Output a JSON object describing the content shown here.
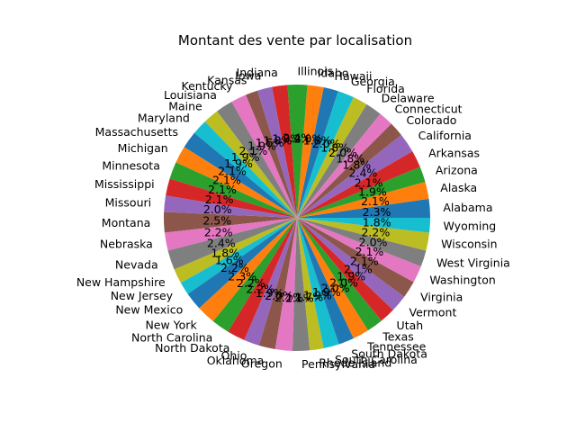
{
  "chart_data": {
    "type": "pie",
    "title": "Montant des vente par localisation",
    "start_angle_deg": 0,
    "direction": "counterclockwise",
    "colors": [
      "#1f77b4",
      "#ff7f0e",
      "#2ca02c",
      "#d62728",
      "#9467bd",
      "#8c564b",
      "#e377c2",
      "#7f7f7f",
      "#bcbd22",
      "#17becf"
    ],
    "slices": [
      {
        "label": "Alabama",
        "value": 2.3,
        "pct_label": "2.3%"
      },
      {
        "label": "Alaska",
        "value": 2.1,
        "pct_label": "2.1%"
      },
      {
        "label": "Arizona",
        "value": 1.9,
        "pct_label": "1.9%"
      },
      {
        "label": "Arkansas",
        "value": 2.1,
        "pct_label": "2.1%"
      },
      {
        "label": "California",
        "value": 2.4,
        "pct_label": "2.4%"
      },
      {
        "label": "Colorado",
        "value": 1.8,
        "pct_label": "1.8%"
      },
      {
        "label": "Connecticut",
        "value": 1.8,
        "pct_label": "1.8%"
      },
      {
        "label": "Delaware",
        "value": 2.0,
        "pct_label": "2.0%"
      },
      {
        "label": "Florida",
        "value": 1.8,
        "pct_label": "1.8%"
      },
      {
        "label": "Georgia",
        "value": 2.0,
        "pct_label": "2.0%"
      },
      {
        "label": "Hawaii",
        "value": 1.8,
        "pct_label": "1.8%"
      },
      {
        "label": "Idaho",
        "value": 2.0,
        "pct_label": "2.0%"
      },
      {
        "label": "Illinois",
        "value": 2.4,
        "pct_label": "2.4%"
      },
      {
        "label": "Indiana",
        "value": 1.9,
        "pct_label": "1.9%"
      },
      {
        "label": "Iowa",
        "value": 1.8,
        "pct_label": "1.8%"
      },
      {
        "label": "Kansas",
        "value": 1.5,
        "pct_label": "1.5%"
      },
      {
        "label": "Kentucky",
        "value": 1.9,
        "pct_label": "1.9%"
      },
      {
        "label": "Louisiana",
        "value": 2.1,
        "pct_label": "2.1%"
      },
      {
        "label": "Maine",
        "value": 1.9,
        "pct_label": "1.9%"
      },
      {
        "label": "Maryland",
        "value": 1.9,
        "pct_label": "1.9%"
      },
      {
        "label": "Massachusetts",
        "value": 2.1,
        "pct_label": "2.1%"
      },
      {
        "label": "Michigan",
        "value": 2.1,
        "pct_label": "2.1%"
      },
      {
        "label": "Minnesota",
        "value": 2.1,
        "pct_label": "2.1%"
      },
      {
        "label": "Mississippi",
        "value": 2.1,
        "pct_label": "2.1%"
      },
      {
        "label": "Missouri",
        "value": 2.0,
        "pct_label": "2.0%"
      },
      {
        "label": "Montana",
        "value": 2.5,
        "pct_label": "2.5%"
      },
      {
        "label": "Nebraska",
        "value": 2.2,
        "pct_label": "2.2%"
      },
      {
        "label": "Nevada",
        "value": 2.4,
        "pct_label": "2.4%"
      },
      {
        "label": "New Hampshire",
        "value": 1.8,
        "pct_label": "1.8%"
      },
      {
        "label": "New Jersey",
        "value": 1.6,
        "pct_label": "1.6%"
      },
      {
        "label": "New Mexico",
        "value": 2.2,
        "pct_label": "2.2%"
      },
      {
        "label": "New York",
        "value": 2.3,
        "pct_label": "2.3%"
      },
      {
        "label": "North Carolina",
        "value": 2.2,
        "pct_label": "2.2%"
      },
      {
        "label": "North Dakota",
        "value": 2.2,
        "pct_label": "2.2%"
      },
      {
        "label": "Ohio",
        "value": 1.9,
        "pct_label": "1.9%"
      },
      {
        "label": "Oklahoma",
        "value": 2.0,
        "pct_label": "2.0%"
      },
      {
        "label": "Oregon",
        "value": 2.1,
        "pct_label": "2.1%"
      },
      {
        "label": "Pennsylvania",
        "value": 2.1,
        "pct_label": "2.1%"
      },
      {
        "label": "Rhode Island",
        "value": 1.7,
        "pct_label": "1.7%"
      },
      {
        "label": "South Carolina",
        "value": 1.9,
        "pct_label": "1.9%"
      },
      {
        "label": "South Dakota",
        "value": 1.9,
        "pct_label": "1.9%"
      },
      {
        "label": "Tennessee",
        "value": 2.0,
        "pct_label": "2.0%"
      },
      {
        "label": "Texas",
        "value": 2.0,
        "pct_label": "2.0%"
      },
      {
        "label": "Utah",
        "value": 1.9,
        "pct_label": "1.9%"
      },
      {
        "label": "Vermont",
        "value": 2.1,
        "pct_label": "2.1%"
      },
      {
        "label": "Virginia",
        "value": 2.1,
        "pct_label": "2.1%"
      },
      {
        "label": "Washington",
        "value": 2.1,
        "pct_label": "2.1%"
      },
      {
        "label": "West Virginia",
        "value": 2.0,
        "pct_label": "2.0%"
      },
      {
        "label": "Wisconsin",
        "value": 2.2,
        "pct_label": "2.2%"
      },
      {
        "label": "Wyoming",
        "value": 1.8,
        "pct_label": "1.8%"
      }
    ]
  }
}
